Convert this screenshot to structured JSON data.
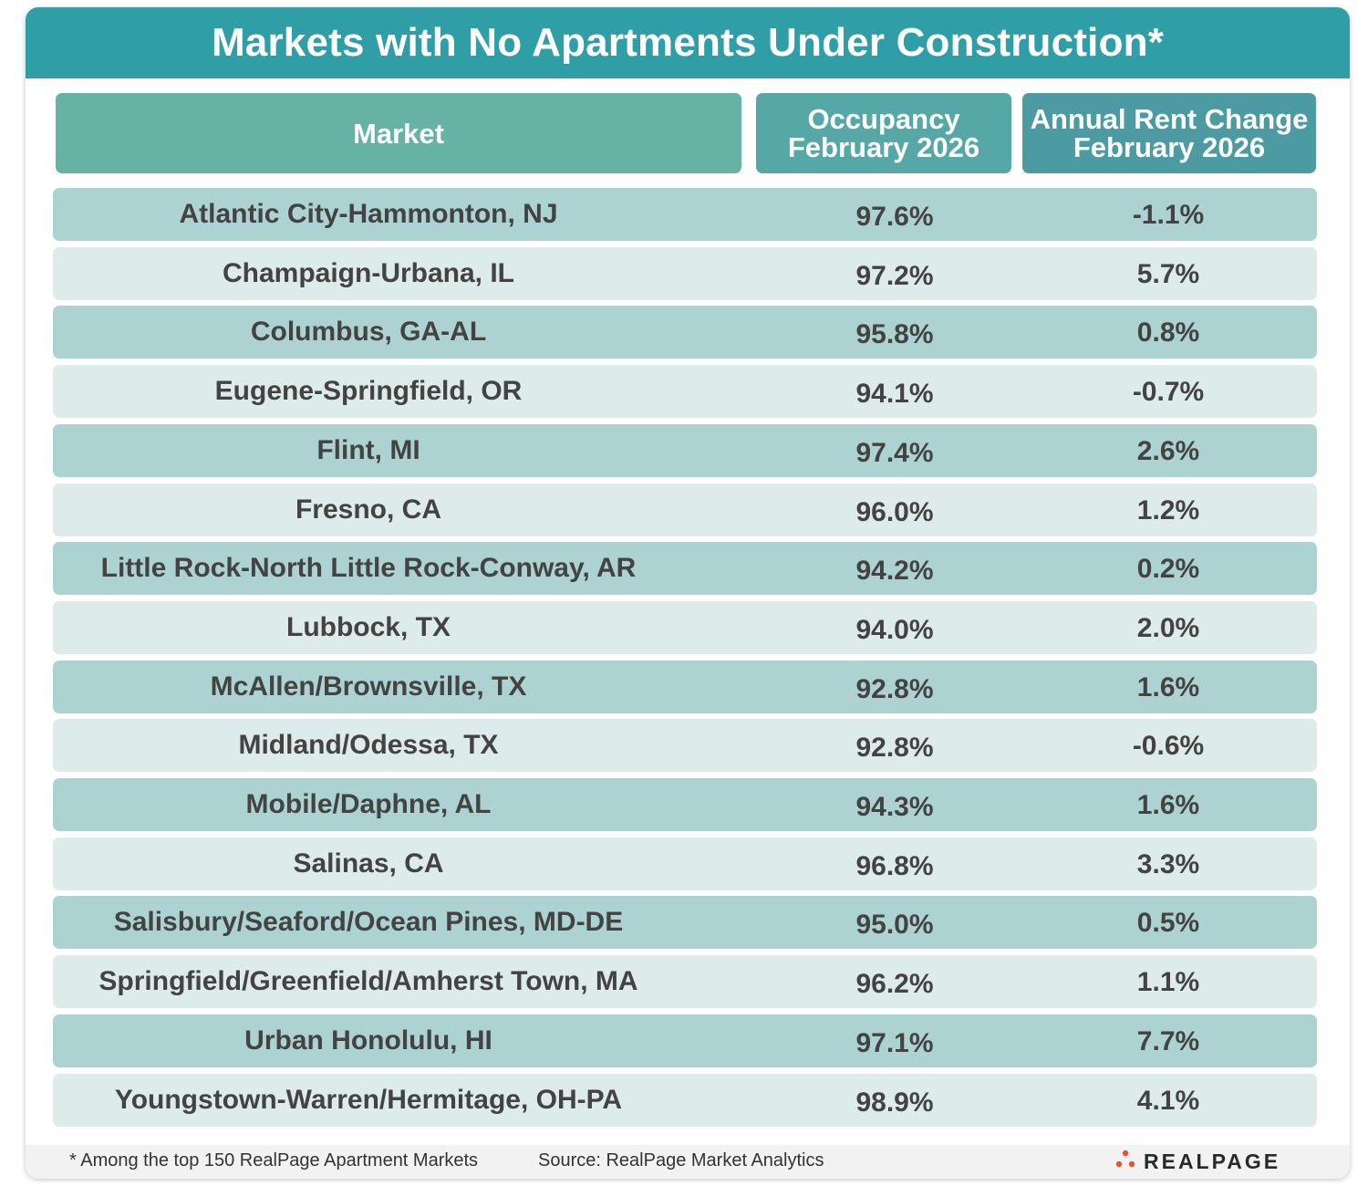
{
  "title": "Markets with No Apartments Under Construction*",
  "headers": {
    "market": "Market",
    "occupancy_line1": "Occupancy",
    "occupancy_line2": "February 2026",
    "rent_line1": "Annual Rent Change",
    "rent_line2": "February 2026"
  },
  "chart_data": {
    "type": "table",
    "title": "Markets with No Apartments Under Construction*",
    "columns": [
      "Market",
      "Occupancy February 2026",
      "Annual Rent Change February 2026"
    ],
    "rows": [
      {
        "market": "Atlantic City-Hammonton, NJ",
        "occupancy": "97.6%",
        "rent_change": "-1.1%"
      },
      {
        "market": "Champaign-Urbana, IL",
        "occupancy": "97.2%",
        "rent_change": "5.7%"
      },
      {
        "market": "Columbus, GA-AL",
        "occupancy": "95.8%",
        "rent_change": "0.8%"
      },
      {
        "market": "Eugene-Springfield, OR",
        "occupancy": "94.1%",
        "rent_change": "-0.7%"
      },
      {
        "market": "Flint, MI",
        "occupancy": "97.4%",
        "rent_change": "2.6%"
      },
      {
        "market": "Fresno, CA",
        "occupancy": "96.0%",
        "rent_change": "1.2%"
      },
      {
        "market": "Little Rock-North Little Rock-Conway, AR",
        "occupancy": "94.2%",
        "rent_change": "0.2%"
      },
      {
        "market": "Lubbock, TX",
        "occupancy": "94.0%",
        "rent_change": "2.0%"
      },
      {
        "market": "McAllen/Brownsville, TX",
        "occupancy": "92.8%",
        "rent_change": "1.6%"
      },
      {
        "market": "Midland/Odessa, TX",
        "occupancy": "92.8%",
        "rent_change": "-0.6%"
      },
      {
        "market": "Mobile/Daphne, AL",
        "occupancy": "94.3%",
        "rent_change": "1.6%"
      },
      {
        "market": "Salinas, CA",
        "occupancy": "96.8%",
        "rent_change": "3.3%"
      },
      {
        "market": "Salisbury/Seaford/Ocean Pines, MD-DE",
        "occupancy": "95.0%",
        "rent_change": "0.5%"
      },
      {
        "market": "Springfield/Greenfield/Amherst Town, MA",
        "occupancy": "96.2%",
        "rent_change": "1.1%"
      },
      {
        "market": "Urban Honolulu, HI",
        "occupancy": "97.1%",
        "rent_change": "7.7%"
      },
      {
        "market": "Youngstown-Warren/Hermitage, OH-PA",
        "occupancy": "98.9%",
        "rent_change": "4.1%"
      }
    ]
  },
  "footer": {
    "note": "* Among the top 150 RealPage Apartment Markets",
    "source": "Source: RealPage Market Analytics",
    "logo_text": "REALPAGE",
    "logo_icon": "realpage-dots-logo-icon"
  },
  "colors": {
    "title_bg": "#2f9ea6",
    "row_dark": "#acd3d2",
    "row_light": "#ddecea",
    "logo_dot": "#e4572e"
  }
}
